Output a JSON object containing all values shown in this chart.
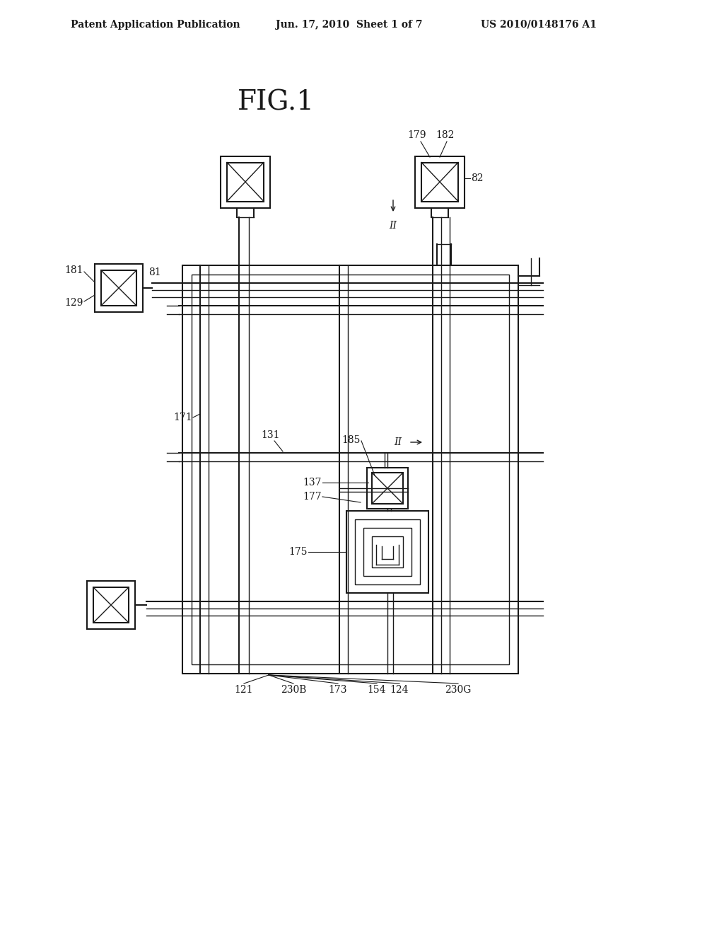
{
  "bg_color": "#ffffff",
  "line_color": "#1a1a1a",
  "header_left": "Patent Application Publication",
  "header_mid": "Jun. 17, 2010  Sheet 1 of 7",
  "header_right": "US 2010/0148176 A1",
  "fig_title": "FIG.1"
}
